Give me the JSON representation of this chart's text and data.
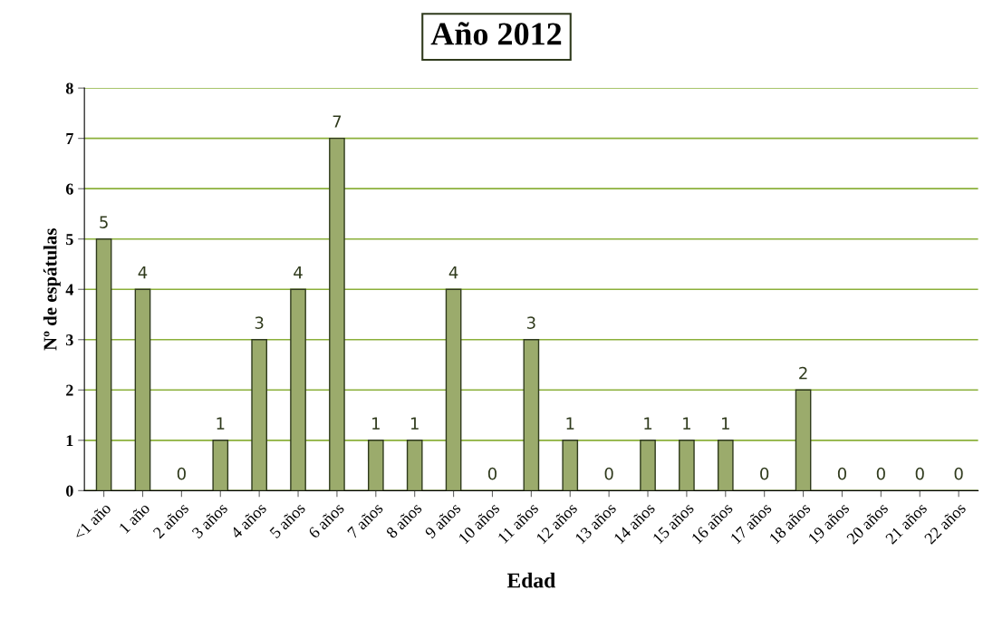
{
  "chart_data": {
    "type": "bar",
    "title": "Año 2012",
    "xlabel": "Edad",
    "ylabel": "Nº de espátulas",
    "categories": [
      "<1 año",
      "1 año",
      "2 años",
      "3 años",
      "4 años",
      "5 años",
      "6 años",
      "7 años",
      "8 años",
      "9 años",
      "10 años",
      "11 años",
      "12 años",
      "13 años",
      "14 años",
      "15 años",
      "16 años",
      "17 años",
      "18 años",
      "19 años",
      "20 años",
      "21 años",
      "22 años"
    ],
    "values": [
      5,
      4,
      0,
      1,
      3,
      4,
      7,
      1,
      1,
      4,
      0,
      3,
      1,
      0,
      1,
      1,
      1,
      0,
      2,
      0,
      0,
      0,
      0
    ],
    "color": "#9bab6c",
    "ylim": [
      0,
      8
    ],
    "yticks": [
      0,
      1,
      2,
      3,
      4,
      5,
      6,
      7,
      8
    ],
    "grid": "y",
    "data_labels": true
  }
}
